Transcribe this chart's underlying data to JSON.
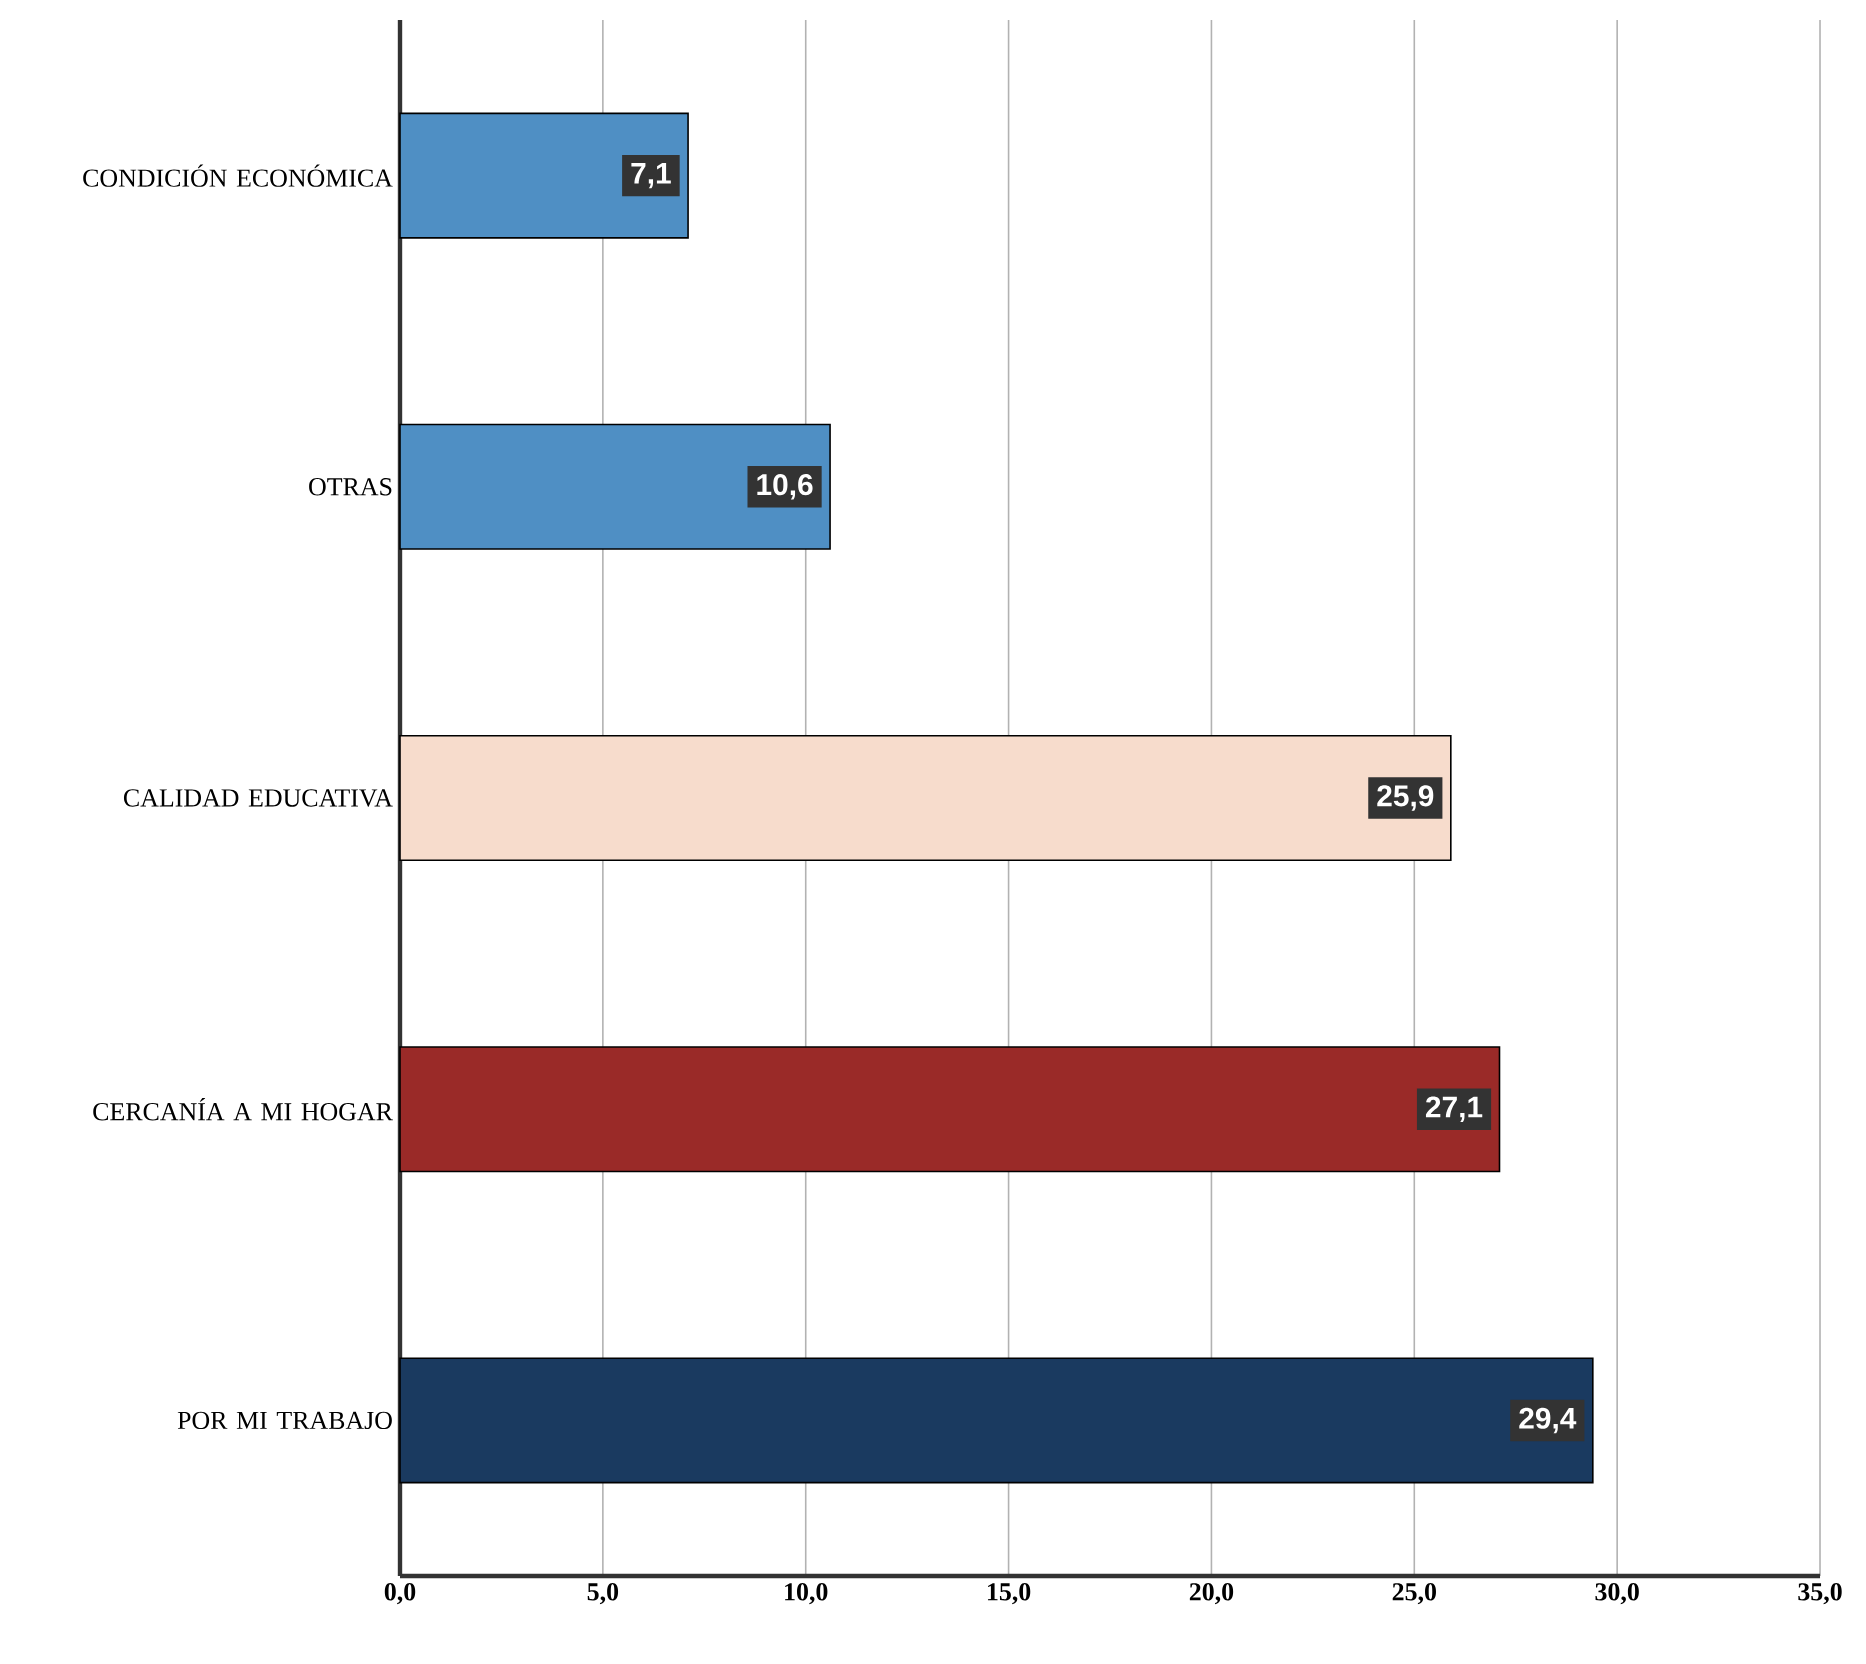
{
  "chart_data": {
    "type": "bar",
    "orientation": "horizontal",
    "categories": [
      "CONDICIÓN ECONÓMICA",
      "OTRAS",
      "CALIDAD EDUCATIVA",
      "CERCANÍA A MI HOGAR",
      "POR MI TRABAJO"
    ],
    "values": [
      7.1,
      10.6,
      25.9,
      27.1,
      29.4
    ],
    "colors": [
      "#4f8fc4",
      "#4f8fc4",
      "#f7dccc",
      "#9a2a28",
      "#1a3a60"
    ],
    "value_labels": [
      "7,1",
      "10,6",
      "25,9",
      "27,1",
      "29,4"
    ],
    "xlim": [
      0,
      35
    ],
    "xticks": [
      {
        "value": 0,
        "label": "0,0"
      },
      {
        "value": 5,
        "label": "5,0"
      },
      {
        "value": 10,
        "label": "10,0"
      },
      {
        "value": 15,
        "label": "15,0"
      },
      {
        "value": 20,
        "label": "20,0"
      },
      {
        "value": 25,
        "label": "25,0"
      },
      {
        "value": 30,
        "label": "30,0"
      },
      {
        "value": 35,
        "label": "35,0"
      }
    ],
    "grid": "x"
  }
}
